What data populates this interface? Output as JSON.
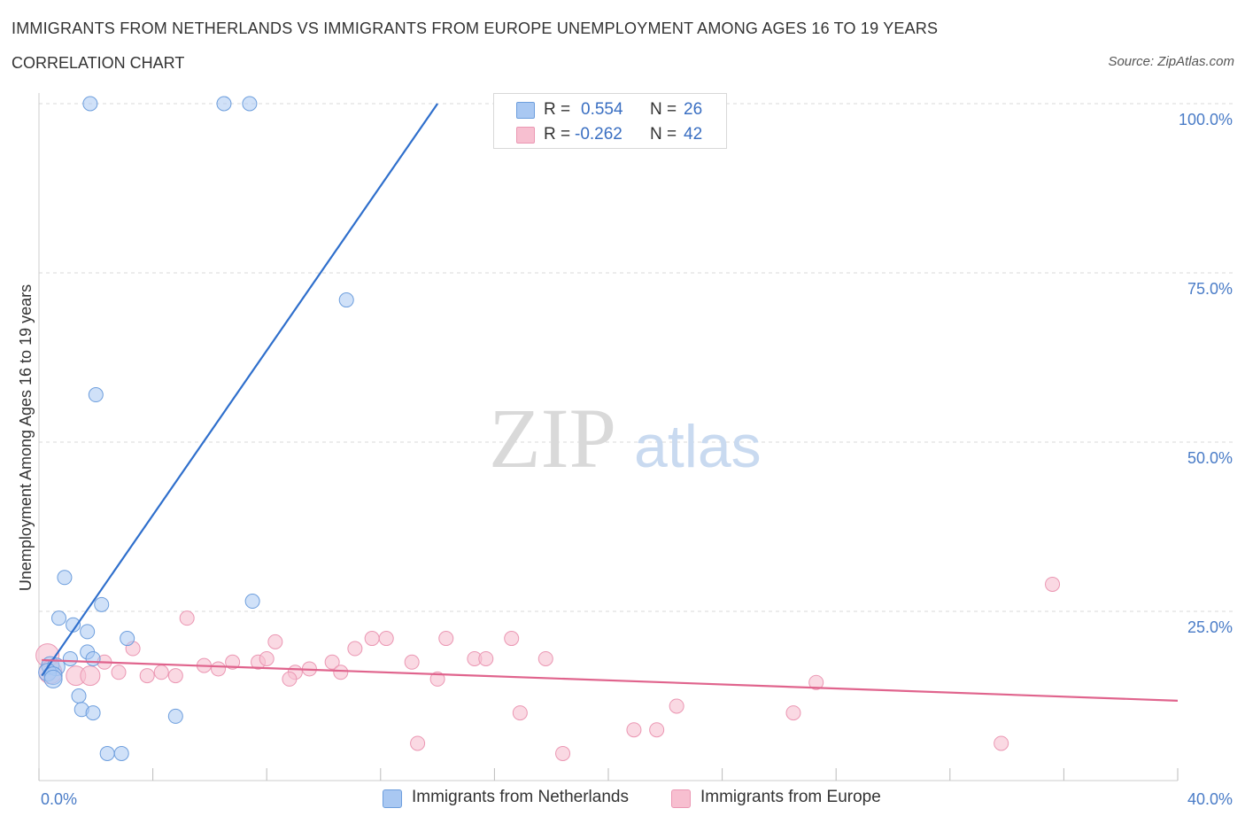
{
  "header": {
    "title": "IMMIGRANTS FROM NETHERLANDS VS IMMIGRANTS FROM EUROPE UNEMPLOYMENT AMONG AGES 16 TO 19 YEARS",
    "subtitle": "CORRELATION CHART",
    "source": "Source: ZipAtlas.com"
  },
  "watermark": {
    "zip": "ZIP",
    "atlas": "atlas"
  },
  "legend": {
    "series1": {
      "r_label": "R =",
      "r_value": "0.554",
      "n_label": "N =",
      "n_value": "26",
      "color": "#a9c8f2"
    },
    "series2": {
      "r_label": "R =",
      "r_value": "-0.262",
      "n_label": "N =",
      "n_value": "42",
      "color": "#f7bfd0"
    }
  },
  "bottom_legend": {
    "series1": "Immigrants from Netherlands",
    "series2": "Immigrants from Europe"
  },
  "colors": {
    "blue_fill": "#a9c8f2",
    "blue_stroke": "#6d9edd",
    "blue_line": "#2f6fcc",
    "pink_fill": "#f7bfd0",
    "pink_stroke": "#eb97b3",
    "pink_line": "#e0648d",
    "grid": "#d9d9d9",
    "tick_label": "#4a7cc7"
  },
  "chart_data": {
    "type": "scatter",
    "title": "IMMIGRANTS FROM NETHERLANDS VS IMMIGRANTS FROM EUROPE UNEMPLOYMENT AMONG AGES 16 TO 19 YEARS",
    "xlabel": "",
    "ylabel": "Unemployment Among Ages 16 to 19 years",
    "xlim": [
      0,
      40
    ],
    "ylim": [
      0,
      100
    ],
    "x_tick_labels": [
      "0.0%",
      "40.0%"
    ],
    "y_ticks": [
      25,
      50,
      75,
      100
    ],
    "y_tick_labels": [
      "25.0%",
      "50.0%",
      "75.0%",
      "100.0%"
    ],
    "grid": "horizontal dashed",
    "legend_position": "top-center",
    "series": [
      {
        "name": "Immigrants from Netherlands",
        "color": "#a9c8f2",
        "points": [
          [
            1.8,
            100
          ],
          [
            6.5,
            100
          ],
          [
            7.4,
            100
          ],
          [
            10.8,
            71
          ],
          [
            2.0,
            57
          ],
          [
            0.9,
            30
          ],
          [
            7.5,
            26.5
          ],
          [
            2.2,
            26
          ],
          [
            0.7,
            24
          ],
          [
            1.2,
            23
          ],
          [
            1.7,
            22
          ],
          [
            3.1,
            21
          ],
          [
            1.7,
            19
          ],
          [
            1.9,
            18
          ],
          [
            1.1,
            18
          ],
          [
            0.4,
            17
          ],
          [
            0.6,
            16.8
          ],
          [
            0.3,
            16
          ],
          [
            0.5,
            15.5
          ],
          [
            0.5,
            15
          ],
          [
            1.4,
            12.5
          ],
          [
            1.5,
            10.5
          ],
          [
            1.9,
            10
          ],
          [
            4.8,
            9.5
          ],
          [
            2.4,
            4
          ],
          [
            2.9,
            4
          ]
        ],
        "trendline": {
          "x": [
            0.1,
            14.0
          ],
          "y": [
            15.5,
            100
          ]
        }
      },
      {
        "name": "Immigrants from Europe",
        "color": "#f7bfd0",
        "points": [
          [
            35.6,
            29
          ],
          [
            5.2,
            24
          ],
          [
            8.3,
            20.5
          ],
          [
            11.7,
            21
          ],
          [
            14.3,
            21
          ],
          [
            16.6,
            21
          ],
          [
            11.1,
            19.5
          ],
          [
            12.2,
            21
          ],
          [
            3.3,
            19.5
          ],
          [
            2.3,
            17.5
          ],
          [
            6.8,
            17.5
          ],
          [
            7.7,
            17.5
          ],
          [
            8.0,
            18
          ],
          [
            9.0,
            16
          ],
          [
            9.5,
            16.5
          ],
          [
            10.3,
            17.5
          ],
          [
            13.1,
            17.5
          ],
          [
            15.3,
            18
          ],
          [
            15.7,
            18
          ],
          [
            17.8,
            18
          ],
          [
            5.8,
            17
          ],
          [
            6.3,
            16.5
          ],
          [
            2.8,
            16
          ],
          [
            3.8,
            15.5
          ],
          [
            4.3,
            16
          ],
          [
            4.8,
            15.5
          ],
          [
            8.8,
            15
          ],
          [
            10.6,
            16
          ],
          [
            14.0,
            15
          ],
          [
            0.3,
            18.5
          ],
          [
            0.4,
            16
          ],
          [
            1.3,
            15.5
          ],
          [
            1.8,
            15.5
          ],
          [
            27.3,
            14.5
          ],
          [
            22.4,
            11
          ],
          [
            16.9,
            10
          ],
          [
            26.5,
            10
          ],
          [
            20.9,
            7.5
          ],
          [
            21.7,
            7.5
          ],
          [
            13.3,
            5.5
          ],
          [
            18.4,
            4
          ],
          [
            33.8,
            5.5
          ]
        ],
        "trendline": {
          "x": [
            0.1,
            40.0
          ],
          "y": [
            17.8,
            11.8
          ]
        }
      }
    ]
  }
}
